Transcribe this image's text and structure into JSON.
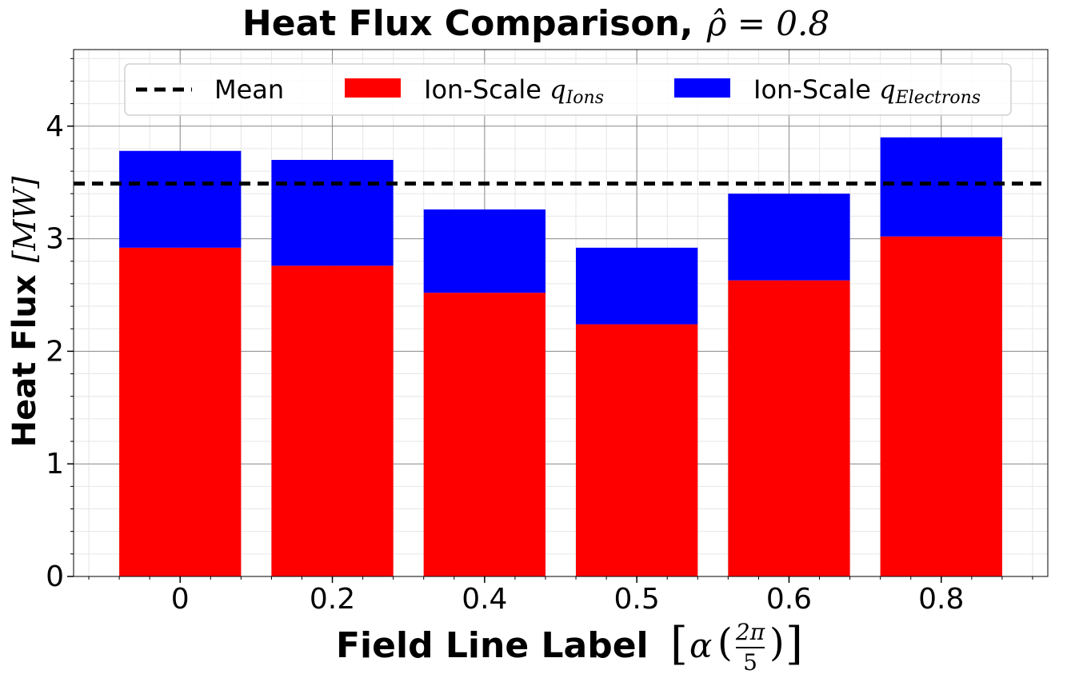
{
  "chart_data": {
    "type": "bar",
    "stacked": true,
    "title": "Heat Flux Comparison,",
    "title_math": "ρ̂ = 0.8",
    "xlabel": "Field Line Label",
    "xlabel_math": "[α (2π/5)]",
    "xlabel_math_alpha": "α",
    "xlabel_math_num": "2π",
    "xlabel_math_den": "5",
    "ylabel": "Heat Flux",
    "ylabel_unit": "[MW]",
    "categories": [
      "0",
      "0.2",
      "0.4",
      "0.5",
      "0.6",
      "0.8"
    ],
    "series": [
      {
        "name_prefix": "Ion-Scale ",
        "name_q": "q",
        "name_sub": "Ions",
        "color": "#ff0000",
        "values": [
          2.92,
          2.76,
          2.52,
          2.24,
          2.63,
          3.02
        ]
      },
      {
        "name_prefix": "Ion-Scale ",
        "name_q": "q",
        "name_sub": "Electrons",
        "color": "#0000ff",
        "values": [
          0.86,
          0.94,
          0.74,
          0.68,
          0.77,
          0.88
        ]
      }
    ],
    "mean": {
      "name": "Mean",
      "value": 3.49,
      "color": "#000000",
      "style": "dashed"
    },
    "ylim": [
      0,
      4.68
    ],
    "yticks": [
      "0",
      "1",
      "2",
      "3",
      "4"
    ],
    "grid": true,
    "minor_grid": true,
    "legend_position": "top"
  }
}
